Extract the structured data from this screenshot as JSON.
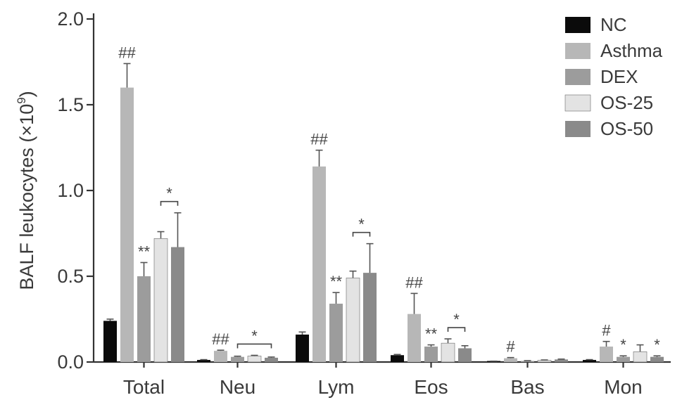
{
  "chart_data": {
    "type": "bar",
    "title": "",
    "xlabel": "",
    "ylabel": "BALF leukocytes (×10",
    "ylabel_sup": "9",
    "ylabel_close": ")",
    "ylim": [
      0,
      2.0
    ],
    "yticks": [
      "0.0",
      "0.5",
      "1.0",
      "1.5",
      "2.0"
    ],
    "ytick_values": [
      0,
      0.5,
      1.0,
      1.5,
      2.0
    ],
    "categories": [
      "Total",
      "Neu",
      "Lym",
      "Eos",
      "Bas",
      "Mon"
    ],
    "legend_position": "top-right",
    "series": [
      {
        "name": "NC",
        "color": "#0b0b0b",
        "values": [
          0.24,
          0.012,
          0.16,
          0.04,
          0.004,
          0.012
        ],
        "errors": [
          0.01,
          0.002,
          0.015,
          0.004,
          0.001,
          0.002
        ]
      },
      {
        "name": "Asthma",
        "color": "#b7b7b7",
        "values": [
          1.6,
          0.065,
          1.14,
          0.28,
          0.022,
          0.09
        ],
        "errors": [
          0.14,
          0.004,
          0.095,
          0.12,
          0.004,
          0.03
        ]
      },
      {
        "name": "DEX",
        "color": "#9c9c9c",
        "values": [
          0.5,
          0.03,
          0.34,
          0.09,
          0.006,
          0.03
        ],
        "errors": [
          0.08,
          0.004,
          0.065,
          0.01,
          0.002,
          0.006
        ]
      },
      {
        "name": "OS-25",
        "color": "#e3e3e3",
        "values": [
          0.72,
          0.035,
          0.49,
          0.11,
          0.01,
          0.06
        ],
        "errors": [
          0.04,
          0.004,
          0.04,
          0.025,
          0.002,
          0.04
        ]
      },
      {
        "name": "OS-50",
        "color": "#8a8a8a",
        "values": [
          0.67,
          0.025,
          0.52,
          0.08,
          0.015,
          0.03
        ],
        "errors": [
          0.2,
          0.004,
          0.17,
          0.015,
          0.002,
          0.006
        ]
      }
    ],
    "annotations": [
      {
        "category": "Total",
        "series": "Asthma",
        "text": "##"
      },
      {
        "category": "Total",
        "series": "DEX",
        "text": "**"
      },
      {
        "category": "Neu",
        "series": "Asthma",
        "text": "##"
      },
      {
        "category": "Lym",
        "series": "Asthma",
        "text": "##"
      },
      {
        "category": "Lym",
        "series": "DEX",
        "text": "**"
      },
      {
        "category": "Eos",
        "series": "Asthma",
        "text": "##"
      },
      {
        "category": "Eos",
        "series": "DEX",
        "text": "**"
      },
      {
        "category": "Bas",
        "series": "Asthma",
        "text": "#"
      },
      {
        "category": "Mon",
        "series": "Asthma",
        "text": "#"
      },
      {
        "category": "Mon",
        "series": "DEX",
        "text": "*"
      },
      {
        "category": "Mon",
        "series": "OS-50",
        "text": "*"
      }
    ],
    "brackets": [
      {
        "category": "Total",
        "from": "OS-25",
        "to": "OS-50",
        "text": "*"
      },
      {
        "category": "Neu",
        "from": "DEX",
        "to": "OS-50",
        "text": "*"
      },
      {
        "category": "Lym",
        "from": "OS-25",
        "to": "OS-50",
        "text": "*"
      },
      {
        "category": "Eos",
        "from": "OS-25",
        "to": "OS-50",
        "text": "*"
      }
    ]
  }
}
